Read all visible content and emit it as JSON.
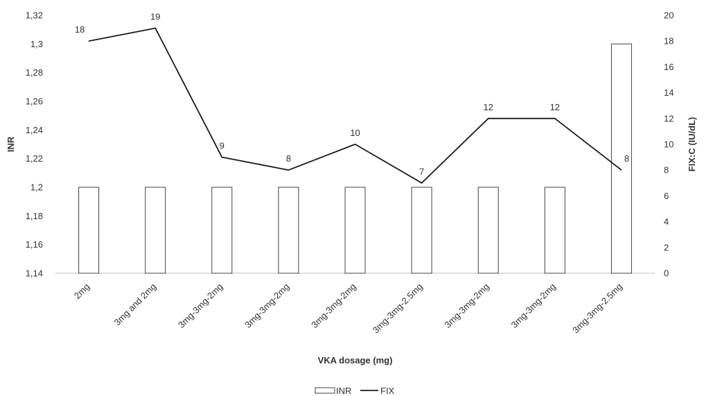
{
  "chart_data": {
    "type": "bar+line",
    "categories": [
      "2mg",
      "3mg and 2mg",
      "3mg-3mg-2mg",
      "3mg-3mg-2mg",
      "3mg-3mg-2mg",
      "3mg-3mg-2.5mg",
      "3mg-3mg-2mg",
      "3mg-3mg-2mg",
      "3mg-3mg-2.5mg"
    ],
    "series": [
      {
        "name": "INR",
        "type": "bar",
        "axis": "left",
        "values": [
          1.2,
          1.2,
          1.2,
          1.2,
          1.2,
          1.2,
          1.2,
          1.2,
          1.3
        ]
      },
      {
        "name": "FIX",
        "type": "line",
        "axis": "right",
        "values": [
          18,
          19,
          9,
          8,
          10,
          7,
          12,
          12,
          8
        ]
      }
    ],
    "xlabel": "VKA dosage (mg)",
    "ylabel": "INR",
    "y2label": "FIX:C (IU/dL)",
    "ylim": [
      1.14,
      1.32
    ],
    "y2lim": [
      0,
      20
    ],
    "y_ticks": [
      "1,14",
      "1,16",
      "1,18",
      "1,2",
      "1,22",
      "1,24",
      "1,26",
      "1,28",
      "1,3",
      "1,32"
    ],
    "y2_ticks": [
      "0",
      "2",
      "4",
      "6",
      "8",
      "10",
      "12",
      "14",
      "16",
      "18",
      "20"
    ],
    "grid": false,
    "legend": "bottom",
    "line_data_labels": [
      "18",
      "19",
      "9",
      "8",
      "10",
      "7",
      "12",
      "12",
      "8"
    ],
    "colors": {
      "bar_fill": "#ffffff",
      "bar_stroke": "#404040",
      "line": "#1a1a1a",
      "axis": "#bfbfbf"
    }
  }
}
